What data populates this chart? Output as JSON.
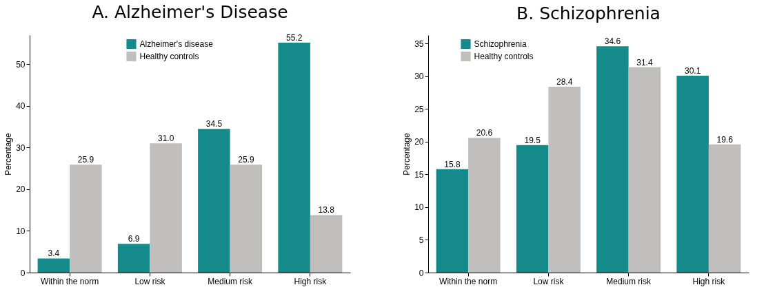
{
  "chart_data": [
    {
      "type": "bar",
      "title": "A. Alzheimer's Disease",
      "ylabel": "Percentage",
      "categories": [
        "Within the norm",
        "Low risk",
        "Medium risk",
        "High risk"
      ],
      "series": [
        {
          "name": "Alzheimer's disease",
          "color": "#148a8a",
          "values": [
            3.4,
            6.9,
            34.5,
            55.2
          ]
        },
        {
          "name": "Healthy controls",
          "color": "#c0bfbe",
          "values": [
            25.9,
            31.0,
            25.9,
            13.8
          ],
          "value_labels": [
            "25.9",
            "31.0",
            "25.9",
            "13.8"
          ]
        }
      ],
      "ylim": [
        0,
        57
      ],
      "yticks": [
        0,
        10,
        20,
        30,
        40,
        50
      ],
      "data_labels": true,
      "legend": "top",
      "grid": false
    },
    {
      "type": "bar",
      "title": "B. Schizophrenia",
      "ylabel": "Percentage",
      "categories": [
        "Within the norm",
        "Low risk",
        "Medium risk",
        "High risk"
      ],
      "series": [
        {
          "name": "Schizophrenia",
          "color": "#148a8a",
          "values": [
            15.8,
            19.5,
            34.6,
            30.1
          ]
        },
        {
          "name": "Healthy controls",
          "color": "#c0bfbe",
          "values": [
            20.6,
            28.4,
            31.4,
            19.6
          ]
        }
      ],
      "ylim": [
        0,
        36.3
      ],
      "yticks": [
        0,
        5,
        10,
        15,
        20,
        25,
        30,
        35
      ],
      "data_labels": true,
      "legend": "top left",
      "grid": false
    }
  ]
}
